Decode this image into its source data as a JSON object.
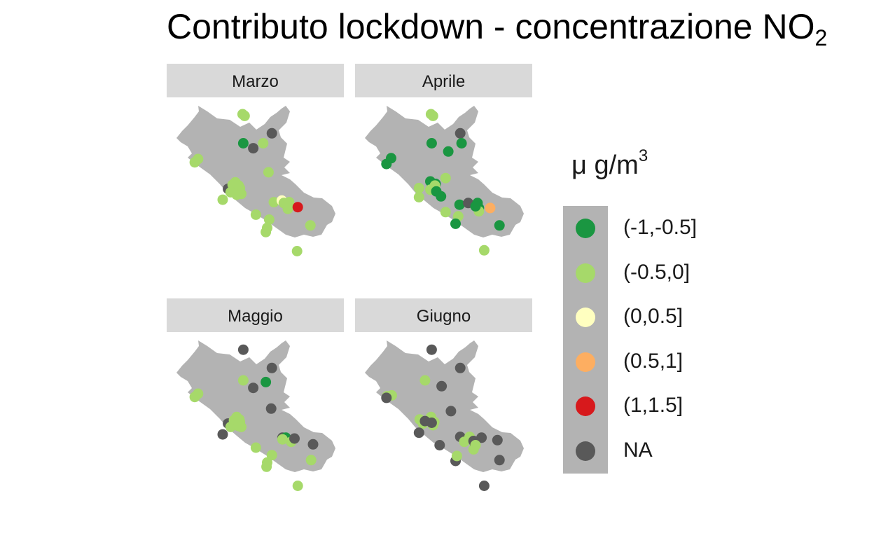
{
  "title": {
    "main": "Contributo lockdown - concentrazione NO",
    "sub": "2"
  },
  "legend": {
    "title_base": "μ g/m",
    "title_sup": "3",
    "items": [
      {
        "label": "(-1,-0.5]",
        "color": "#1a9641"
      },
      {
        "label": "(-0.5,0]",
        "color": "#a6d96a"
      },
      {
        "label": "(0,0.5]",
        "color": "#ffffc0"
      },
      {
        "label": "(0.5,1]",
        "color": "#fdae61"
      },
      {
        "label": "(1,1.5]",
        "color": "#d7191c"
      },
      {
        "label": "NA",
        "color": "#595959"
      }
    ]
  },
  "region_color": "#b3b3b3",
  "panels": [
    {
      "label": "Marzo",
      "stations": [
        [
          "(-0.5,0]",
          12.7,
          42.87
        ],
        [
          "(-0.5,0]",
          12.73,
          42.85
        ],
        [
          "NA",
          13.14,
          42.64
        ],
        [
          "(-1,-0.5]",
          12.71,
          42.52
        ],
        [
          "NA",
          12.86,
          42.46
        ],
        [
          "(-0.5,0]",
          13.01,
          42.52
        ],
        [
          "(-0.5,0]",
          11.98,
          42.29
        ],
        [
          "(-0.5,0]",
          12.03,
          42.33
        ],
        [
          "(-0.5,0]",
          13.09,
          42.17
        ],
        [
          "NA",
          12.48,
          41.97
        ],
        [
          "(-0.5,0]",
          12.52,
          41.93
        ],
        [
          "(-0.5,0]",
          12.55,
          42.02
        ],
        [
          "(-0.5,0]",
          12.59,
          42.05
        ],
        [
          "(-0.5,0]",
          12.66,
          41.98
        ],
        [
          "(-0.5,0]",
          12.64,
          42.01
        ],
        [
          "(-0.5,0]",
          12.61,
          41.9
        ],
        [
          "(-0.5,0]",
          12.68,
          41.91
        ],
        [
          "(-0.5,0]",
          12.4,
          41.84
        ],
        [
          "(-0.5,0]",
          12.9,
          41.66
        ],
        [
          "(-0.5,0]",
          13.17,
          41.81
        ],
        [
          "(0,0.5]",
          13.29,
          41.83
        ],
        [
          "(-0.5,0]",
          13.32,
          41.8
        ],
        [
          "(-0.5,0]",
          13.38,
          41.73
        ],
        [
          "(-0.5,0]",
          13.4,
          41.81
        ],
        [
          "(1,1.5]",
          13.53,
          41.75
        ],
        [
          "(-0.5,0]",
          13.1,
          41.6
        ],
        [
          "(-0.5,0]",
          13.07,
          41.5
        ],
        [
          "(-0.5,0]",
          13.05,
          41.45
        ],
        [
          "(-0.5,0]",
          13.72,
          41.53
        ],
        [
          "(-0.5,0]",
          13.52,
          41.22
        ]
      ]
    },
    {
      "label": "Aprile",
      "stations": [
        [
          "(-0.5,0]",
          12.7,
          42.87
        ],
        [
          "(-0.5,0]",
          12.73,
          42.85
        ],
        [
          "NA",
          13.14,
          42.64
        ],
        [
          "(-1,-0.5]",
          12.71,
          42.52
        ],
        [
          "(-1,-0.5]",
          12.96,
          42.42
        ],
        [
          "(-1,-0.5]",
          13.16,
          42.52
        ],
        [
          "(-1,-0.5]",
          12.1,
          42.34
        ],
        [
          "(-1,-0.5]",
          12.03,
          42.27
        ],
        [
          "(-0.5,0]",
          12.52,
          41.98
        ],
        [
          "(-1,-0.5]",
          12.69,
          42.06
        ],
        [
          "(-1,-0.5]",
          12.77,
          42.03
        ],
        [
          "(-0.5,0]",
          12.76,
          42.01
        ],
        [
          "(-0.5,0]",
          12.69,
          41.96
        ],
        [
          "(-1,-0.5]",
          12.78,
          41.94
        ],
        [
          "(-1,-0.5]",
          12.85,
          41.88
        ],
        [
          "(-0.5,0]",
          12.92,
          42.1
        ],
        [
          "(-0.5,0]",
          12.52,
          41.87
        ],
        [
          "(-0.5,0]",
          12.92,
          41.69
        ],
        [
          "(-1,-0.5]",
          13.13,
          41.78
        ],
        [
          "NA",
          13.26,
          41.8
        ],
        [
          "(-1,-0.5]",
          13.4,
          41.8
        ],
        [
          "(-1,-0.5]",
          13.42,
          41.74
        ],
        [
          "(-0.5,0]",
          13.42,
          41.7
        ],
        [
          "(-1,-0.5]",
          13.37,
          41.76
        ],
        [
          "(0.5,1]",
          13.59,
          41.74
        ],
        [
          "(-0.5,0]",
          13.11,
          41.64
        ],
        [
          "(-1,-0.5]",
          13.07,
          41.55
        ],
        [
          "(-1,-0.5]",
          13.73,
          41.53
        ],
        [
          "(-0.5,0]",
          13.5,
          41.23
        ]
      ]
    },
    {
      "label": "Maggio",
      "stations": [
        [
          "NA",
          12.71,
          42.86
        ],
        [
          "NA",
          13.14,
          42.64
        ],
        [
          "(-1,-0.5]",
          13.05,
          42.47
        ],
        [
          "(-0.5,0]",
          12.71,
          42.49
        ],
        [
          "NA",
          12.86,
          42.4
        ],
        [
          "(-0.5,0]",
          11.98,
          42.29
        ],
        [
          "(-0.5,0]",
          12.03,
          42.33
        ],
        [
          "NA",
          13.13,
          42.15
        ],
        [
          "NA",
          12.48,
          41.97
        ],
        [
          "(-0.5,0]",
          12.52,
          41.93
        ],
        [
          "(-0.5,0]",
          12.57,
          42.01
        ],
        [
          "(-0.5,0]",
          12.61,
          42.05
        ],
        [
          "(-0.5,0]",
          12.66,
          41.99
        ],
        [
          "(-0.5,0]",
          12.64,
          41.94
        ],
        [
          "(-0.5,0]",
          12.65,
          42.02
        ],
        [
          "(-0.5,0]",
          12.68,
          41.93
        ],
        [
          "NA",
          12.4,
          41.84
        ],
        [
          "(-0.5,0]",
          12.9,
          41.68
        ],
        [
          "NA",
          13.3,
          41.8
        ],
        [
          "(-1,-0.5]",
          13.35,
          41.8
        ],
        [
          "(-0.5,0]",
          13.3,
          41.78
        ],
        [
          "(-0.5,0]",
          13.43,
          41.75
        ],
        [
          "NA",
          13.48,
          41.79
        ],
        [
          "NA",
          13.76,
          41.72
        ],
        [
          "(-0.5,0]",
          13.14,
          41.59
        ],
        [
          "(-0.5,0]",
          13.07,
          41.5
        ],
        [
          "(-0.5,0]",
          13.06,
          41.45
        ],
        [
          "(-0.5,0]",
          13.73,
          41.53
        ],
        [
          "(-0.5,0]",
          13.53,
          41.22
        ]
      ]
    },
    {
      "label": "Giugno",
      "stations": [
        [
          "NA",
          12.71,
          42.86
        ],
        [
          "NA",
          13.14,
          42.64
        ],
        [
          "(-0.5,0]",
          12.61,
          42.49
        ],
        [
          "NA",
          12.86,
          42.42
        ],
        [
          "(-0.5,0]",
          12.11,
          42.31
        ],
        [
          "(-0.5,0]",
          12.04,
          42.3
        ],
        [
          "NA",
          12.03,
          42.28
        ],
        [
          "(-0.5,0]",
          12.53,
          42.02
        ],
        [
          "(-0.5,0]",
          12.58,
          41.97
        ],
        [
          "(-0.5,0]",
          12.7,
          42.05
        ],
        [
          "(-0.5,0]",
          12.72,
          42.0
        ],
        [
          "(-0.5,0]",
          12.75,
          41.99
        ],
        [
          "(-0.5,0]",
          12.73,
          41.95
        ],
        [
          "NA",
          12.61,
          42.0
        ],
        [
          "NA",
          12.71,
          41.98
        ],
        [
          "NA",
          12.52,
          41.86
        ],
        [
          "NA",
          13.0,
          42.12
        ],
        [
          "NA",
          12.83,
          41.71
        ],
        [
          "NA",
          13.14,
          41.81
        ],
        [
          "NA",
          13.23,
          41.78
        ],
        [
          "(-0.5,0]",
          13.28,
          41.81
        ],
        [
          "(-0.5,0]",
          13.2,
          41.75
        ],
        [
          "NA",
          13.34,
          41.76
        ],
        [
          "NA",
          13.46,
          41.8
        ],
        [
          "NA",
          13.7,
          41.77
        ],
        [
          "(-0.5,0]",
          13.34,
          41.66
        ],
        [
          "NA",
          13.36,
          41.73
        ],
        [
          "(-0.5,0]",
          13.37,
          41.71
        ],
        [
          "NA",
          13.07,
          41.52
        ],
        [
          "(-0.5,0]",
          13.09,
          41.58
        ],
        [
          "NA",
          13.73,
          41.53
        ],
        [
          "NA",
          13.5,
          41.22
        ]
      ]
    }
  ]
}
